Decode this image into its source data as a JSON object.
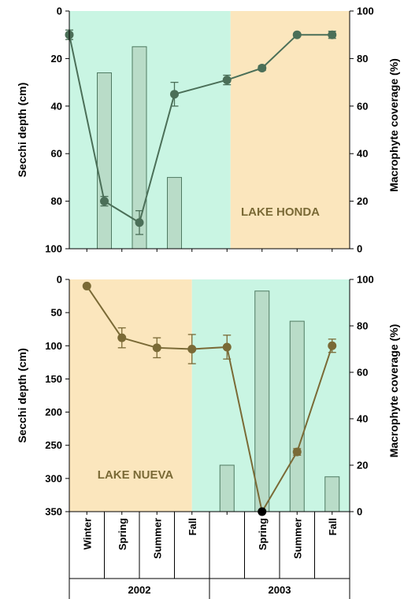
{
  "colors": {
    "green_region": "#c9f5e3",
    "orange_region": "#fbe6bd",
    "bar_fill": "#b9dcc8",
    "bar_stroke": "#4f7a62",
    "honda_line": "#4b6f58",
    "nueva_line": "#7a6a36",
    "lake_label": "#7a6a36",
    "outlier_point": "#000000"
  },
  "x_axis": {
    "seasons": [
      "Winter",
      "Spring",
      "Summer",
      "Fall",
      "",
      "Spring",
      "Summer",
      "Fall"
    ],
    "years": [
      "2002",
      "2003"
    ]
  },
  "chart_data": [
    {
      "type": "bar+line",
      "label": "LAKE HONDA",
      "ylabel": "Secchi depth (cm)",
      "ylabel_right": "Macrophyte coverage (%)",
      "ylim": [
        0,
        100
      ],
      "ylim_right": [
        0,
        100
      ],
      "y_inverted": true,
      "yticks": [
        "0",
        "20",
        "40",
        "60",
        "80",
        "100"
      ],
      "yticks_right": [
        "100",
        "80",
        "60",
        "40",
        "20",
        "0"
      ],
      "regions": [
        {
          "from_slot": 0,
          "to_slot": 4.6,
          "color": "green"
        },
        {
          "from_slot": 4.6,
          "to_slot": 8,
          "color": "orange"
        }
      ],
      "bars": [
        {
          "slot": 1,
          "value": 74
        },
        {
          "slot": 2,
          "value": 85
        },
        {
          "slot": 3,
          "value": 30
        }
      ],
      "series": [
        {
          "points": [
            {
              "slot": 0,
              "y": 10,
              "err": 2
            },
            {
              "slot": 1,
              "y": 80,
              "err": 2
            },
            {
              "slot": 2,
              "y": 89,
              "err": 5
            },
            {
              "slot": 3,
              "y": 35,
              "err": 5
            },
            {
              "slot": 4.5,
              "y": 29,
              "err": 2
            },
            {
              "slot": 5.5,
              "y": 24,
              "err": 1
            },
            {
              "slot": 6.5,
              "y": 10,
              "err": 0.5
            },
            {
              "slot": 7.5,
              "y": 10,
              "err": 1.5
            }
          ]
        }
      ]
    },
    {
      "type": "bar+line",
      "label": "LAKE NUEVA",
      "ylabel": "Secchi depth (cm)",
      "ylabel_right": "Macrophyte coverage (%)",
      "ylim": [
        0,
        350
      ],
      "ylim_right": [
        0,
        100
      ],
      "y_inverted": true,
      "yticks": [
        "0",
        "50",
        "100",
        "150",
        "200",
        "250",
        "300",
        "350"
      ],
      "yticks_right": [
        "100",
        "80",
        "60",
        "40",
        "20",
        "0"
      ],
      "regions": [
        {
          "from_slot": 0,
          "to_slot": 3.5,
          "color": "orange"
        },
        {
          "from_slot": 3.5,
          "to_slot": 8,
          "color": "green"
        }
      ],
      "bars": [
        {
          "slot": 4.5,
          "value": 20
        },
        {
          "slot": 5.5,
          "value": 95
        },
        {
          "slot": 6.5,
          "value": 82
        },
        {
          "slot": 7.5,
          "value": 15
        }
      ],
      "series": [
        {
          "points": [
            {
              "slot": 0.5,
              "y": 10,
              "err": 0
            },
            {
              "slot": 1.5,
              "y": 88,
              "err": 15
            },
            {
              "slot": 2.5,
              "y": 103,
              "err": 15
            },
            {
              "slot": 3.5,
              "y": 105,
              "err": 22
            },
            {
              "slot": 4.5,
              "y": 102,
              "err": 18
            },
            {
              "slot": 5.5,
              "y": 350,
              "err": 0
            },
            {
              "slot": 6.5,
              "y": 260,
              "err": 5
            },
            {
              "slot": 7.5,
              "y": 100,
              "err": 10
            }
          ]
        }
      ]
    }
  ]
}
